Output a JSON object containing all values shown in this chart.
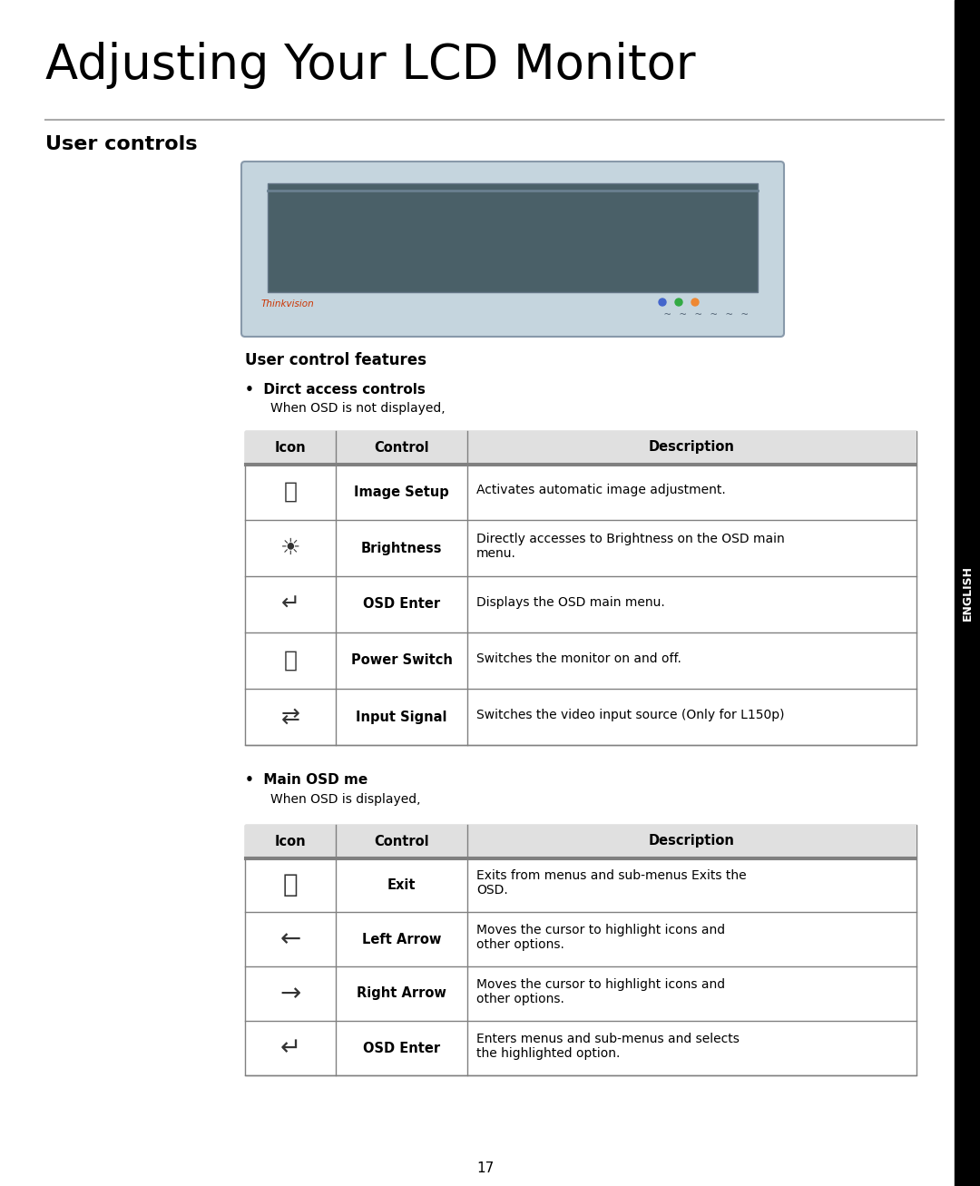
{
  "title": "Adjusting Your LCD Monitor",
  "section_title": "User controls",
  "subsection_title": "User control features",
  "bullet1_title": "Dirct access controls",
  "bullet1_subtitle": "When OSD is not displayed,",
  "bullet2_title": "Main OSD me",
  "bullet2_subtitle": "When OSD is displayed,",
  "tab1_headers": [
    "Icon",
    "Control",
    "Description"
  ],
  "tab1_rows": [
    [
      "image_setup",
      "Image Setup",
      "Activates automatic image adjustment."
    ],
    [
      "brightness",
      "Brightness",
      "Directly accesses to Brightness on the OSD main\nmenu."
    ],
    [
      "osd_enter",
      "OSD Enter",
      "Displays the OSD main menu."
    ],
    [
      "power_switch",
      "Power Switch",
      "Switches the monitor on and off."
    ],
    [
      "input_signal",
      "Input Signal",
      "Switches the video input source (Only for L150p)"
    ]
  ],
  "tab2_headers": [
    "Icon",
    "Control",
    "Description"
  ],
  "tab2_rows": [
    [
      "exit",
      "Exit",
      "Exits from menus and sub-menus Exits the\nOSD."
    ],
    [
      "left_arrow",
      "Left Arrow",
      "Moves the cursor to highlight icons and\nother options."
    ],
    [
      "right_arrow",
      "Right Arrow",
      "Moves the cursor to highlight icons and\nother options."
    ],
    [
      "osd_enter2",
      "OSD Enter",
      "Enters menus and sub-menus and selects\nthe highlighted option."
    ]
  ],
  "sidebar_text": "ENGLISH",
  "sidebar_bg": "#000000",
  "sidebar_text_color": "#ffffff",
  "page_number": "17",
  "bg_color": "#ffffff",
  "title_color": "#000000",
  "section_color": "#000000",
  "header_row_bg": "#e8e8e8",
  "table_border_color": "#808080",
  "thinkvision_color": "#cc3300",
  "monitor_bg": "#c5d5de",
  "monitor_screen": "#4a6068",
  "monitor_bezel": "#b8c8d2"
}
